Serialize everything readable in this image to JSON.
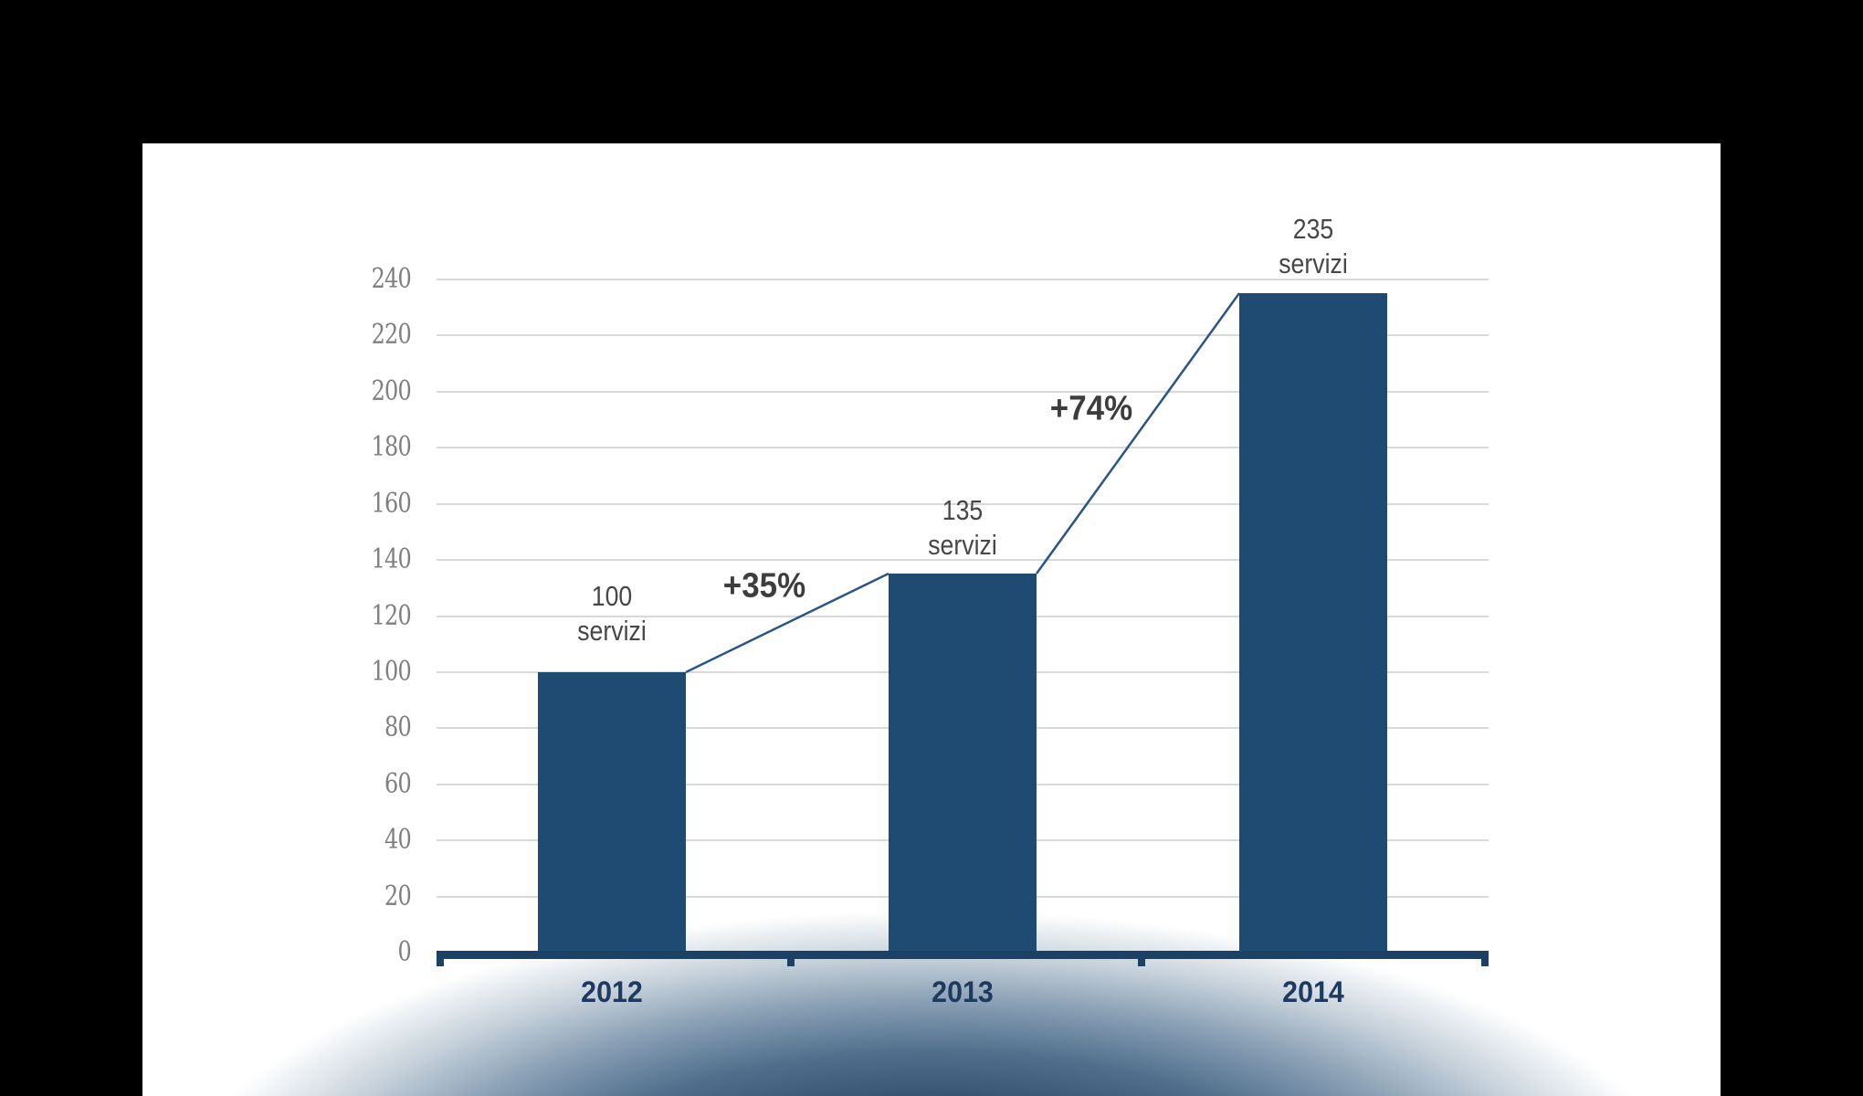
{
  "page": {
    "background_color": "#000000",
    "panel_color": "#ffffff"
  },
  "chart_data": {
    "type": "bar",
    "title": "",
    "xlabel": "",
    "ylabel": "",
    "categories": [
      "2012",
      "2013",
      "2014"
    ],
    "values": [
      100,
      135,
      235
    ],
    "bar_value_labels": [
      [
        "100",
        "servizi"
      ],
      [
        "135",
        "servizi"
      ],
      [
        "235",
        "servizi"
      ]
    ],
    "growth_annotations": [
      {
        "label": "+35%",
        "from": "2012",
        "to": "2013"
      },
      {
        "label": "+74%",
        "from": "2013",
        "to": "2014"
      }
    ],
    "ylim": [
      0,
      240
    ],
    "ytick_step": 20,
    "yticks": [
      0,
      20,
      40,
      60,
      80,
      100,
      120,
      140,
      160,
      180,
      200,
      220,
      240
    ],
    "grid": true,
    "legend": "none",
    "colors": {
      "bar": "#1f4a72",
      "axis": "#1c4166",
      "connector_line": "#2a5585",
      "gridline": "#d9d9d9",
      "y_tick_label": "#7f7f7f",
      "bar_value_label": "#474747",
      "annotation": "#3d3d3d",
      "x_tick_label": "#1e3a5f",
      "bottom_glow_stops": [
        [
          "#27425f",
          "0%"
        ],
        [
          "#32506e",
          "32%"
        ],
        [
          "#52708e",
          "50%"
        ],
        [
          "#8aa0b5",
          "66%"
        ],
        [
          "#c6d1db",
          "80%"
        ],
        [
          "rgba(255,255,255,0)",
          "95%"
        ]
      ]
    }
  }
}
